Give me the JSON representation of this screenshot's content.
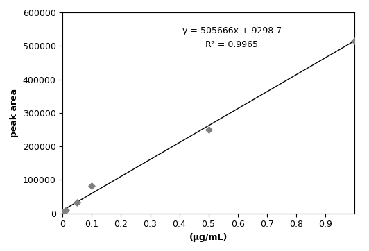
{
  "chart_data": {
    "type": "scatter",
    "x_label": "(µg/mL)",
    "y_label": "peak area",
    "annotations": [
      "y = 505666x + 9298.7",
      "R² = 0.9965"
    ],
    "series": [
      {
        "type": "scatter",
        "color": "#808080",
        "marker": "diamond",
        "x": [
          0,
          0.005,
          0.01,
          0.05,
          0.1,
          0.5,
          1.0
        ],
        "values": [
          3000,
          6000,
          9000,
          33000,
          82000,
          250000,
          515000
        ]
      },
      {
        "type": "line",
        "color": "#000000",
        "line_style": "solid",
        "x": [
          0,
          1.0
        ],
        "values": [
          9299,
          514965
        ]
      }
    ],
    "xlim": [
      0,
      1.0
    ],
    "xticks": [
      0,
      0.1,
      0.2,
      0.3,
      0.4,
      0.5,
      0.6,
      0.7,
      0.8,
      0.9
    ],
    "ylim": [
      0,
      600000
    ],
    "yticks": [
      0,
      100000,
      200000,
      300000,
      400000,
      500000,
      600000
    ],
    "grid": false
  }
}
